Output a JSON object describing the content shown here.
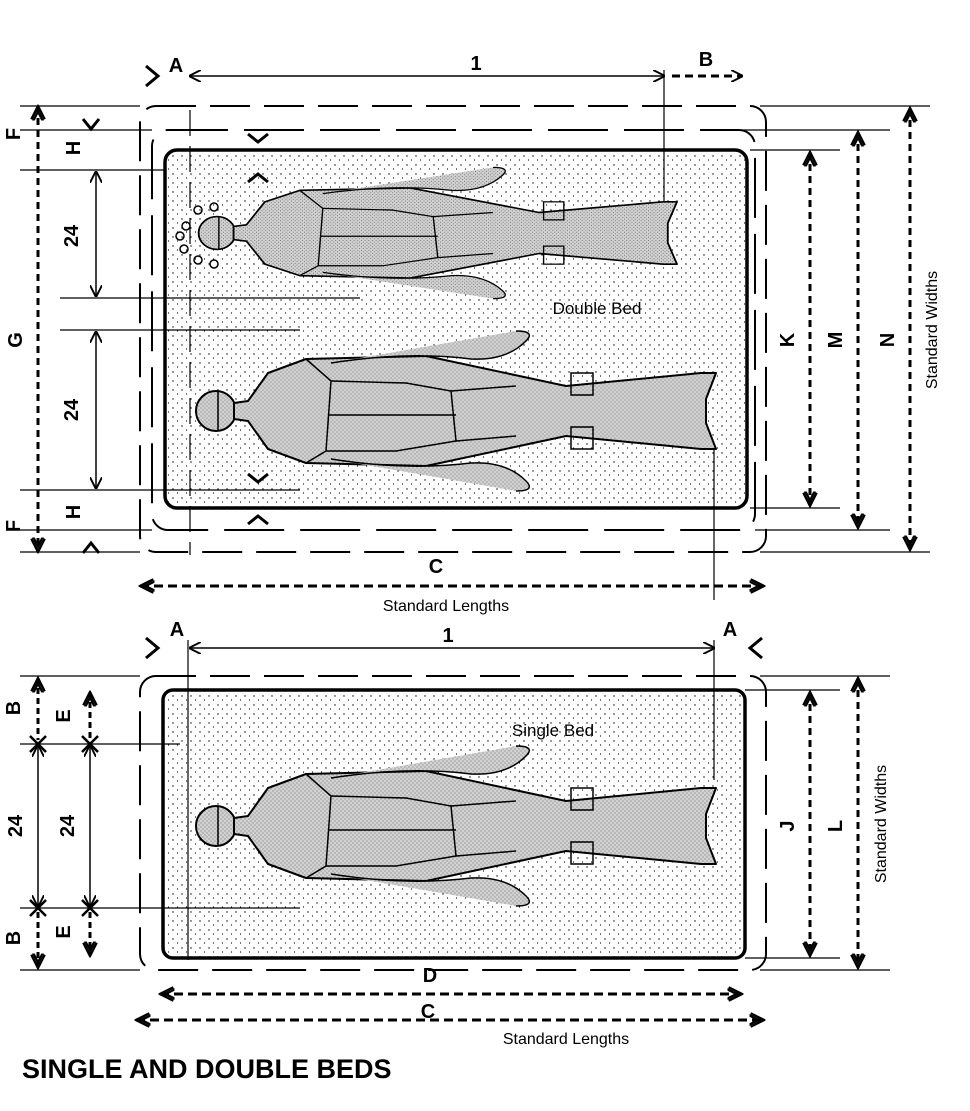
{
  "title": "SINGLE AND DOUBLE BEDS",
  "double_bed": {
    "name": "Double Bed",
    "width_label": "Standard Widths",
    "length_label": "Standard Lengths",
    "person_width_top": "24",
    "person_width_bottom": "24",
    "dims": {
      "A": "A",
      "B": "B",
      "C": "C",
      "F_top": "F",
      "F_bottom": "F",
      "G": "G",
      "H_top": "H",
      "H_bottom": "H",
      "K": "K",
      "M": "M",
      "N": "N",
      "one": "1"
    }
  },
  "single_bed": {
    "name": "Single Bed",
    "width_label": "Standard Widths",
    "length_label": "Standard Lengths",
    "person_width_outer": "24",
    "person_width_inner": "24",
    "dims": {
      "A_left": "A",
      "A_right": "A",
      "B_top": "B",
      "B_bottom": "B",
      "C": "C",
      "D": "D",
      "E_top": "E",
      "E_bottom": "E",
      "J": "J",
      "L": "L",
      "one": "1"
    }
  },
  "colors": {
    "line": "#000000",
    "figure_fill": "#c8c8c8",
    "background": "#ffffff"
  }
}
